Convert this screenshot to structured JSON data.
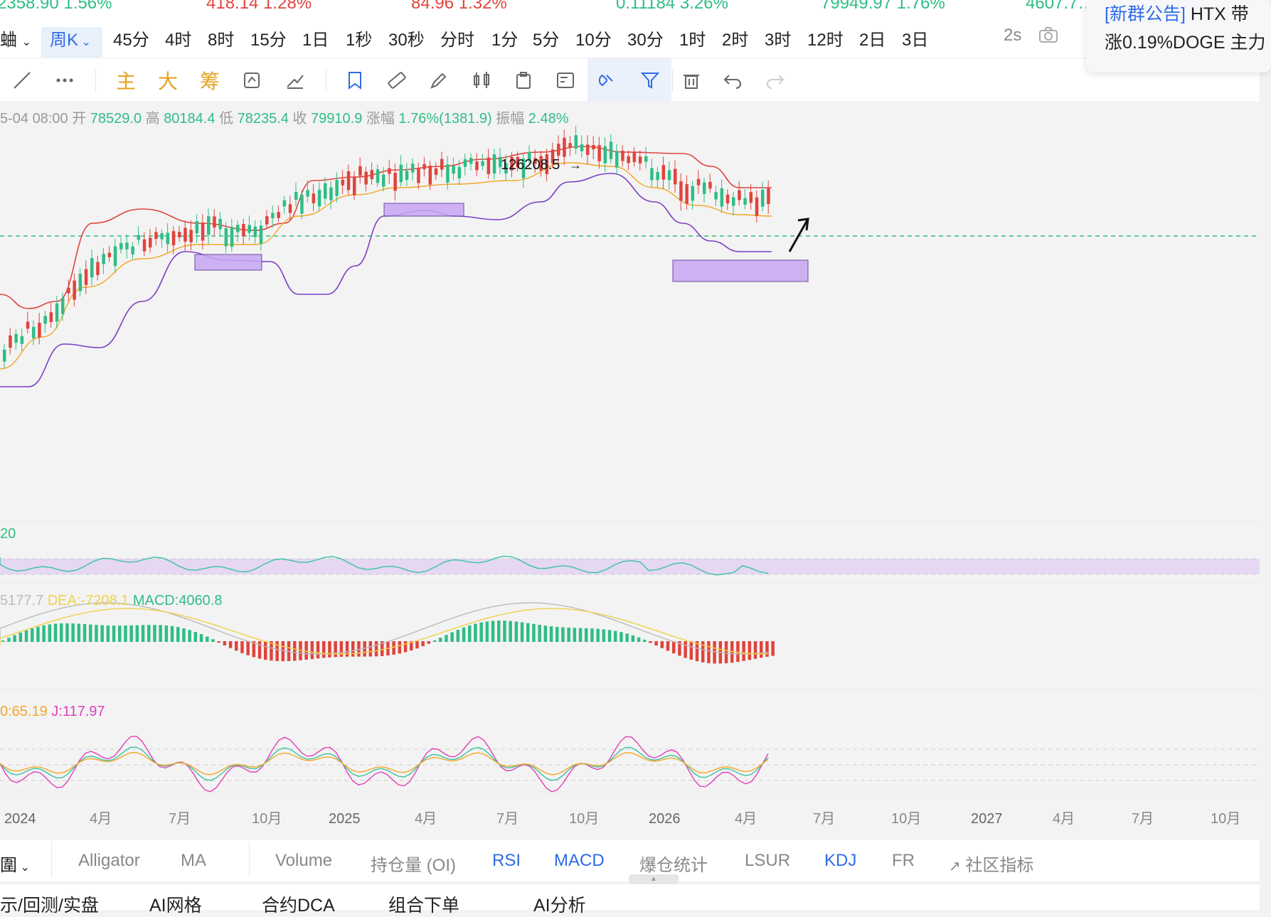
{
  "ticker": [
    {
      "text": "2358.90  1.56%",
      "color": "green"
    },
    {
      "text": "418.14  1.28%",
      "color": "red"
    },
    {
      "text": "84.96  1.32%",
      "color": "red"
    },
    {
      "text": "0.11184  3.26%",
      "color": "green"
    },
    {
      "text": "79949.97  1.76%",
      "color": "green"
    },
    {
      "text": "4607.7…",
      "color": "green"
    }
  ],
  "timeframes": {
    "symbol_cut": "蛐",
    "active": "周K",
    "items": [
      "45分",
      "4时",
      "8时",
      "15分",
      "1日",
      "1秒",
      "30秒",
      "分时",
      "1分",
      "5分",
      "10分",
      "30分",
      "1时",
      "2时",
      "3时",
      "12时",
      "2日",
      "3日"
    ],
    "refresh": "2s"
  },
  "toolbar": {
    "main": "主",
    "big": "大",
    "chips": "筹"
  },
  "popup": {
    "tag": "[新群公告]",
    "line1": " HTX 带",
    "line2": "涨0.19%DOGE 主力"
  },
  "candle_info": {
    "date": "5-04 08:00",
    "open_label": "开",
    "open": "78529.0",
    "high_label": "高",
    "high": "80184.4",
    "low_label": "低",
    "low": "78235.4",
    "close_label": "收",
    "close": "79910.9",
    "change_label": "涨幅",
    "change": "1.76%(1381.9)",
    "amp_label": "振幅",
    "amp": "2.48%"
  },
  "chart_data": {
    "type": "line",
    "peak_label": "126208.5",
    "x_ticks": [
      "2024",
      "4月",
      "7月",
      "10月",
      "2025",
      "4月",
      "7月",
      "10月",
      "2026",
      "4月",
      "7月",
      "10月",
      "2027",
      "4月",
      "7月",
      "10月"
    ],
    "rsi_label": "20",
    "macd": {
      "dif": "5177.7",
      "dea_label": "DEA:",
      "dea": "-7208.1",
      "macd_label": "MACD:",
      "macd": "4060.8"
    },
    "kdj": {
      "d": "0:65.19",
      "j_label": "J:",
      "j": "117.97"
    },
    "colors": {
      "up": "#2fbd86",
      "down": "#e0443d",
      "boll_upper": "#e0443d",
      "boll_mid": "#f5a623",
      "boll_lower": "#7c3fc4",
      "box": "#c7a6f3"
    }
  },
  "indicator_tabs": {
    "period": "圍",
    "items": [
      {
        "label": "Alligator",
        "on": false
      },
      {
        "label": "MA",
        "on": false
      },
      {
        "label": "Volume",
        "on": false
      },
      {
        "label": "持仓量 (OI)",
        "on": false
      },
      {
        "label": "RSI",
        "on": true
      },
      {
        "label": "MACD",
        "on": true
      },
      {
        "label": "爆仓统计",
        "on": false
      },
      {
        "label": "LSUR",
        "on": false
      },
      {
        "label": "KDJ",
        "on": true
      },
      {
        "label": "FR",
        "on": false
      },
      {
        "label": "社区指标",
        "on": false
      }
    ]
  },
  "footer": [
    "示/回测/实盘",
    "AI网格",
    "合约DCA",
    "组合下单",
    "AI分析"
  ]
}
